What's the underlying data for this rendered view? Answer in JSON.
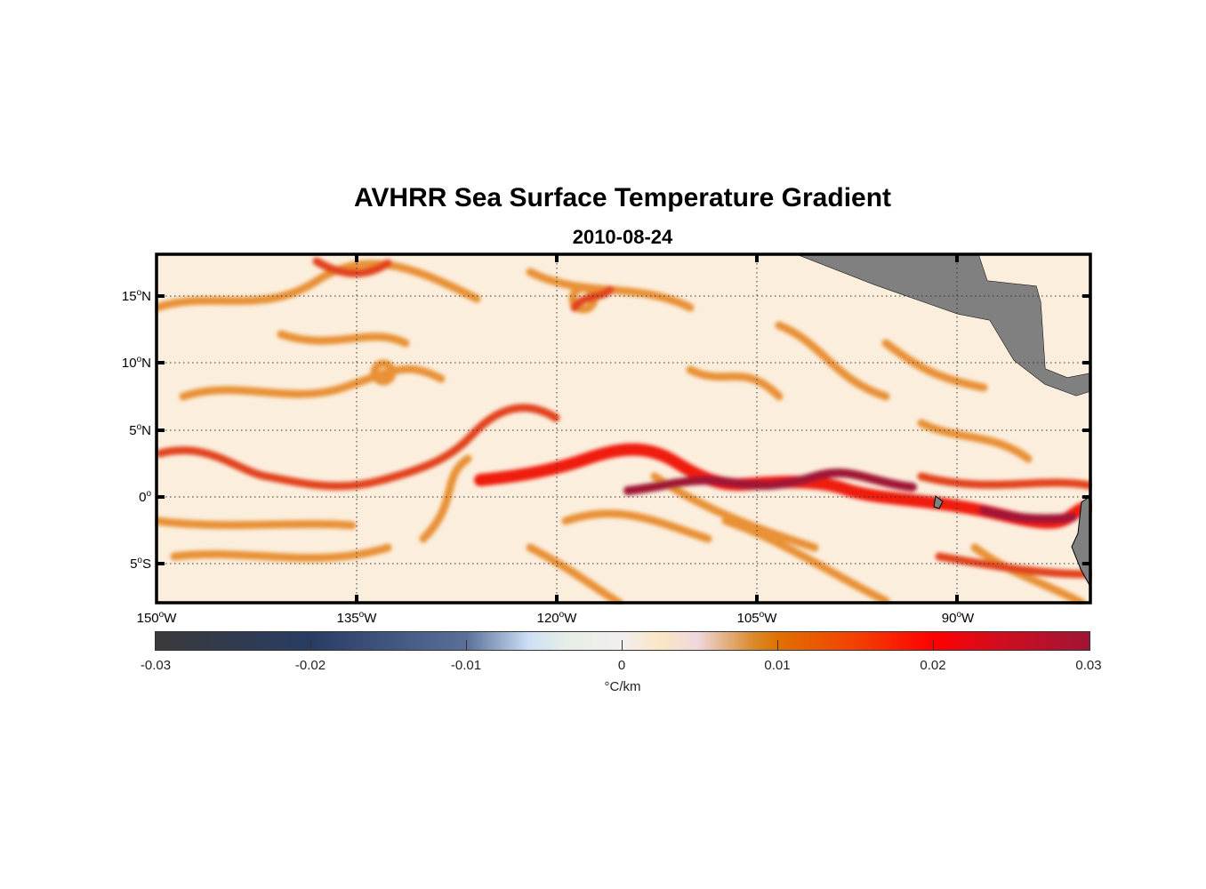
{
  "chart_data": {
    "type": "heatmap",
    "title": "AVHRR Sea Surface Temperature Gradient",
    "subtitle": "2010-08-24",
    "lon_range": [
      -150,
      -80
    ],
    "lat_range": [
      -8,
      18
    ],
    "x_ticks": [
      {
        "deg": "150",
        "hem": "W",
        "value": -150
      },
      {
        "deg": "135",
        "hem": "W",
        "value": -135
      },
      {
        "deg": "120",
        "hem": "W",
        "value": -120
      },
      {
        "deg": "105",
        "hem": "W",
        "value": -105
      },
      {
        "deg": "90",
        "hem": "W",
        "value": -90
      }
    ],
    "y_ticks": [
      {
        "deg": "15",
        "hem": "N",
        "value": 15
      },
      {
        "deg": "10",
        "hem": "N",
        "value": 10
      },
      {
        "deg": "5",
        "hem": "N",
        "value": 5
      },
      {
        "deg": "0",
        "hem": "",
        "value": 0
      },
      {
        "deg": "5",
        "hem": "S",
        "value": -5
      }
    ],
    "grid": true,
    "colorbar": {
      "ticks": [
        "-0.03",
        "-0.02",
        "-0.01",
        "0",
        "0.01",
        "0.02",
        "0.03"
      ],
      "tick_values": [
        -0.03,
        -0.02,
        -0.01,
        0,
        0.01,
        0.02,
        0.03
      ],
      "label": "°C/km",
      "colors": [
        "#3a3a3a",
        "#283c64",
        "#5a6f9a",
        "#f2efef",
        "#e07000",
        "#ff0000",
        "#a01534"
      ]
    },
    "land_color": "#808080"
  }
}
